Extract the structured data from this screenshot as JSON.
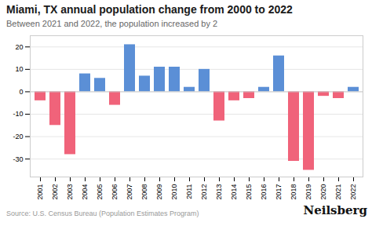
{
  "chart_data": {
    "type": "bar",
    "title": "Miami, TX annual population change from 2000 to 2022",
    "subtitle": "Between 2021 and 2022, the population increased by 2",
    "source": "Source: U.S. Census Bureau (Population Estimates Program)",
    "watermark": "Neilsberg",
    "categories": [
      "2001",
      "2002",
      "2003",
      "2004",
      "2005",
      "2006",
      "2007",
      "2008",
      "2009",
      "2010",
      "2011",
      "2012",
      "2013",
      "2014",
      "2015",
      "2016",
      "2017",
      "2018",
      "2019",
      "2020",
      "2021",
      "2022"
    ],
    "values": [
      -4,
      -15,
      -28,
      8,
      6,
      -6,
      21,
      7,
      11,
      11,
      2,
      10,
      -13,
      -4,
      -3,
      2,
      16,
      -31,
      -35,
      -2,
      -3,
      2
    ],
    "colors": [
      "#f0637a",
      "#f0637a",
      "#f0637a",
      "#5b8fd6",
      "#5b8fd6",
      "#f0637a",
      "#5b8fd6",
      "#5b8fd6",
      "#5b8fd6",
      "#5b8fd6",
      "#5b8fd6",
      "#5b8fd6",
      "#f0637a",
      "#f0637a",
      "#f0637a",
      "#5b8fd6",
      "#5b8fd6",
      "#f0637a",
      "#f0637a",
      "#f0637a",
      "#f0637a",
      "#5b8fd6"
    ],
    "ylim": [
      -38,
      25
    ],
    "yticks": [
      -30,
      -20,
      -10,
      0,
      10,
      20
    ],
    "grid": true
  }
}
